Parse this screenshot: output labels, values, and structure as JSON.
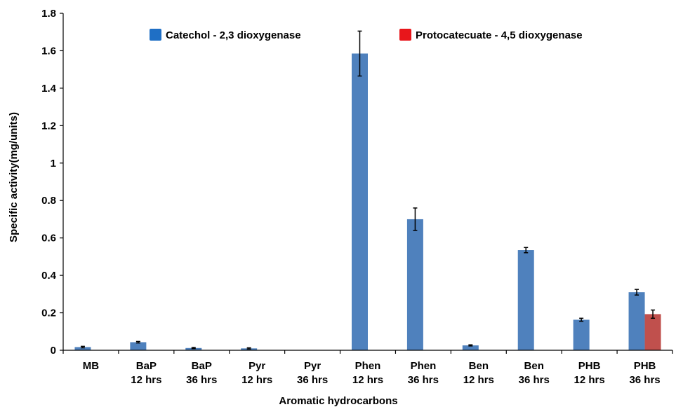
{
  "chart_data": {
    "type": "bar",
    "xlabel": "Aromatic hydrocarbons",
    "ylabel": "Specific  activity(mg/units)",
    "ylim": [
      0,
      1.8
    ],
    "yticks": [
      "0",
      "0.2",
      "0.4",
      "0.6",
      "0.8",
      "1",
      "1.2",
      "1.4",
      "1.6",
      "1.8"
    ],
    "categories": [
      [
        "MB"
      ],
      [
        "BaP",
        "12 hrs"
      ],
      [
        "BaP",
        "36 hrs"
      ],
      [
        "Pyr",
        "12 hrs"
      ],
      [
        "Pyr",
        "36 hrs"
      ],
      [
        "Phen",
        "12 hrs"
      ],
      [
        "Phen",
        "36 hrs"
      ],
      [
        "Ben",
        "12 hrs"
      ],
      [
        "Ben",
        "36 hrs"
      ],
      [
        "PHB",
        "12 hrs"
      ],
      [
        "PHB",
        "36 hrs"
      ]
    ],
    "series": [
      {
        "name": "Catechol - 2,3 dioxygenase",
        "color": "#4f81bd",
        "legend_color": "#1f6fc5",
        "values": [
          0.017,
          0.043,
          0.012,
          0.01,
          0,
          1.585,
          0.7,
          0.026,
          0.535,
          0.163,
          0.31
        ],
        "errors": [
          0.004,
          0.004,
          0.003,
          0.003,
          0,
          0.12,
          0.06,
          0.003,
          0.014,
          0.008,
          0.015
        ]
      },
      {
        "name": "Protocatecuate - 4,5 dioxygenase",
        "color": "#c0504d",
        "legend_color": "#e8161b",
        "values": [
          0,
          0,
          0,
          0,
          0,
          0,
          0,
          0,
          0,
          0,
          0.193
        ],
        "errors": [
          0,
          0,
          0,
          0,
          0,
          0,
          0,
          0,
          0,
          0,
          0.022
        ]
      }
    ],
    "grid": false,
    "legend_position": "top"
  }
}
